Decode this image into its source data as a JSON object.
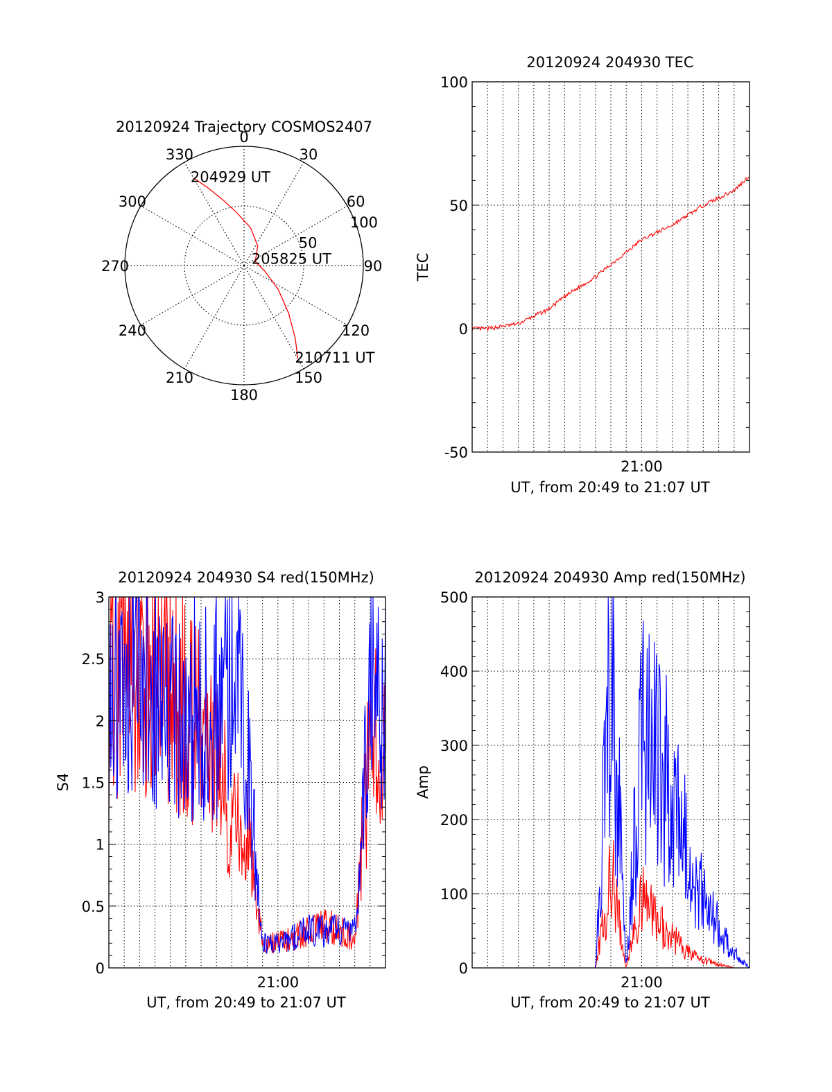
{
  "chart_data": [
    {
      "type": "polar",
      "title": "20120924 Trajectory COSMOS2407",
      "azimuth_labels": [
        "0",
        "30",
        "60",
        "90",
        "120",
        "150",
        "180",
        "210",
        "240",
        "270",
        "300",
        "330"
      ],
      "radial_labels": [
        "50",
        "100"
      ],
      "annotations": [
        {
          "text": "204929 UT",
          "azimuth": 330,
          "radial": 85
        },
        {
          "text": "205825 UT",
          "azimuth": 60,
          "radial": 10
        },
        {
          "text": "210711 UT",
          "azimuth": 150,
          "radial": 90
        }
      ],
      "trajectory": {
        "color": "#ff0000",
        "points": [
          [
            330,
            85
          ],
          [
            335,
            72
          ],
          [
            342,
            58
          ],
          [
            352,
            45
          ],
          [
            10,
            32
          ],
          [
            35,
            20
          ],
          [
            70,
            10
          ],
          [
            105,
            18
          ],
          [
            125,
            35
          ],
          [
            137,
            55
          ],
          [
            145,
            75
          ],
          [
            150,
            90
          ]
        ]
      }
    },
    {
      "type": "line",
      "title": "20120924 204930 TEC",
      "ylabel": "TEC",
      "xlabel": "UT, from 20:49 to 21:07 UT",
      "xtick_labels": [
        "21:00"
      ],
      "ytick_labels": [
        "-50",
        "0",
        "50",
        "100"
      ],
      "ylim": [
        -50,
        100
      ],
      "grid": true,
      "series": [
        {
          "color": "#ff0000",
          "x": [
            0,
            1,
            2,
            3,
            4,
            5,
            6,
            7,
            8,
            9,
            10,
            11,
            12,
            13,
            14,
            15,
            16,
            17,
            18
          ],
          "y": [
            0,
            0,
            1,
            2,
            5,
            8,
            13,
            17,
            21,
            26,
            31,
            36,
            39,
            42,
            46,
            50,
            53,
            56,
            62
          ]
        }
      ]
    },
    {
      "type": "line",
      "title": "20120924 204930 S4 red(150MHz)",
      "ylabel": "S4",
      "xlabel": "UT, from 20:49 to 21:07 UT",
      "xtick_labels": [
        "21:00"
      ],
      "ytick_labels": [
        "0",
        "0.5",
        "1",
        "1.5",
        "2",
        "2.5",
        "3"
      ],
      "ylim": [
        0,
        3
      ],
      "grid": true,
      "series": [
        {
          "color": "#ff0000",
          "x": [
            0,
            1,
            2,
            3,
            4,
            5,
            6,
            7,
            8,
            9,
            10,
            11,
            12,
            13,
            14,
            15,
            16,
            17,
            18
          ],
          "y": [
            2.2,
            2.4,
            2.3,
            2.5,
            2.2,
            2.1,
            1.9,
            1.7,
            1.2,
            1.1,
            0.2,
            0.2,
            0.25,
            0.3,
            0.35,
            0.3,
            0.25,
            1.8,
            2.0
          ]
        },
        {
          "color": "#0000ff",
          "x": [
            0,
            1,
            2,
            3,
            4,
            5,
            6,
            7,
            8,
            9,
            10,
            11,
            12,
            13,
            14,
            15,
            16,
            17,
            18
          ],
          "y": [
            2.3,
            2.1,
            2.4,
            2.2,
            2.0,
            2.2,
            2.0,
            2.1,
            2.3,
            1.8,
            0.2,
            0.2,
            0.25,
            0.3,
            0.3,
            0.3,
            0.3,
            2.2,
            2.1
          ]
        }
      ]
    },
    {
      "type": "line",
      "title": "20120924 204930 Amp red(150MHz)",
      "ylabel": "Amp",
      "xlabel": "UT, from 20:49 to 21:07 UT",
      "xtick_labels": [
        "21:00"
      ],
      "ytick_labels": [
        "0",
        "100",
        "200",
        "300",
        "400",
        "500"
      ],
      "ylim": [
        0,
        500
      ],
      "grid": true,
      "series": [
        {
          "color": "#ff0000",
          "x": [
            0,
            1,
            2,
            3,
            4,
            5,
            6,
            7,
            8,
            9,
            10,
            11,
            12,
            13,
            14,
            15,
            16,
            17,
            18
          ],
          "y": [
            0,
            0,
            0,
            0,
            0,
            0,
            0,
            0,
            0,
            130,
            0,
            90,
            60,
            40,
            20,
            10,
            5,
            0,
            0
          ]
        },
        {
          "color": "#0000ff",
          "x": [
            0,
            1,
            2,
            3,
            4,
            5,
            6,
            7,
            8,
            9,
            10,
            11,
            12,
            13,
            14,
            15,
            16,
            17,
            18
          ],
          "y": [
            0,
            0,
            0,
            0,
            0,
            0,
            0,
            0,
            0,
            440,
            0,
            320,
            280,
            230,
            150,
            90,
            60,
            20,
            0
          ]
        }
      ]
    }
  ]
}
